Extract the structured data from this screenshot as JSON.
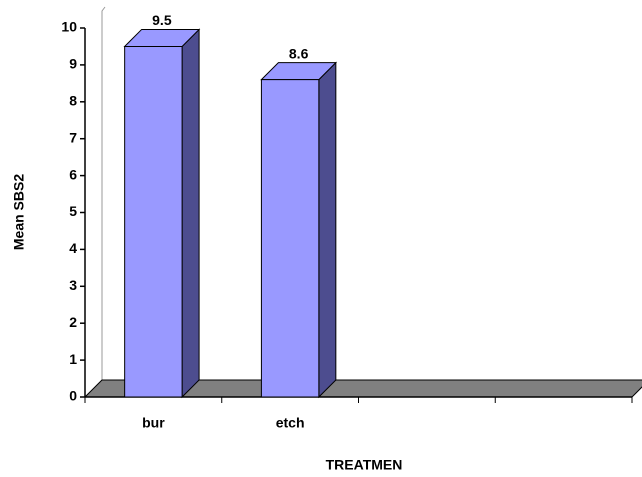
{
  "chart_data": {
    "type": "bar3d",
    "y_label": "Mean SBS2",
    "x_label": "TREATMEN",
    "categories": [
      "bur",
      "etch",
      null,
      null
    ],
    "values": [
      9.5,
      8.6,
      null,
      null
    ],
    "color": "#9999ff",
    "ylim": [
      0,
      10
    ],
    "yticks": [
      0,
      1,
      2,
      3,
      4,
      5,
      6,
      7,
      8,
      9,
      10
    ]
  }
}
